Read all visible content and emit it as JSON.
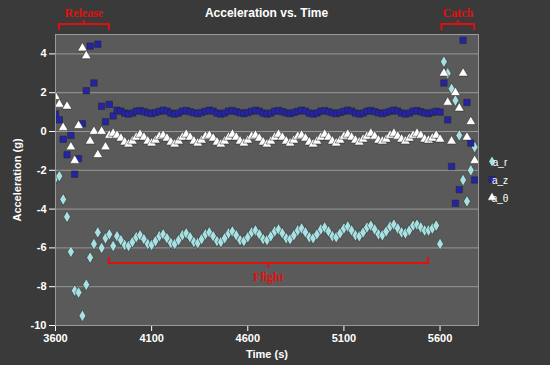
{
  "chart_data": {
    "type": "scatter",
    "title": "Acceleration vs. Time",
    "x_label": "Time (s)",
    "y_label": "Acceleration (g)",
    "xlim": [
      3600,
      5800
    ],
    "xticks": [
      3600,
      4100,
      4600,
      5100,
      5600
    ],
    "ylim": [
      -10,
      5
    ],
    "yticks": [
      -10,
      -8,
      -6,
      -4,
      -2,
      0,
      2,
      4
    ],
    "grid": true,
    "legend": "right",
    "x": [
      3600,
      3620,
      3640,
      3660,
      3680,
      3700,
      3720,
      3740,
      3760,
      3780,
      3800,
      3820,
      3840,
      3860,
      3880,
      3900,
      3920,
      3940,
      3960,
      3980,
      4000,
      4020,
      4040,
      4060,
      4080,
      4100,
      4120,
      4140,
      4160,
      4180,
      4200,
      4220,
      4240,
      4260,
      4280,
      4300,
      4320,
      4340,
      4360,
      4380,
      4400,
      4420,
      4440,
      4460,
      4480,
      4500,
      4520,
      4540,
      4560,
      4580,
      4600,
      4620,
      4640,
      4660,
      4680,
      4700,
      4720,
      4740,
      4760,
      4780,
      4800,
      4820,
      4840,
      4860,
      4880,
      4900,
      4920,
      4940,
      4960,
      4980,
      5000,
      5020,
      5040,
      5060,
      5080,
      5100,
      5120,
      5140,
      5160,
      5180,
      5200,
      5220,
      5240,
      5260,
      5280,
      5300,
      5320,
      5340,
      5360,
      5380,
      5400,
      5420,
      5440,
      5460,
      5480,
      5500,
      5520,
      5540,
      5560,
      5580,
      5600,
      5620,
      5640,
      5660,
      5680,
      5700,
      5720,
      5740,
      5760,
      5780
    ],
    "series": [
      {
        "name": "a_r",
        "color": "#a9e1e3",
        "marker": "diamond",
        "values": [
          -2.4,
          -2.3,
          -3.5,
          -4.4,
          -6.2,
          -8.2,
          -8.3,
          -9.5,
          -7.9,
          -6.5,
          -5.8,
          -5.2,
          -6.0,
          -5.5,
          -5.3,
          -5.9,
          -5.4,
          -5.6,
          -5.85,
          -5.9,
          -5.7,
          -5.45,
          -5.35,
          -5.55,
          -5.8,
          -5.85,
          -5.65,
          -5.4,
          -5.3,
          -5.5,
          -5.75,
          -5.8,
          -5.6,
          -5.35,
          -5.25,
          -5.45,
          -5.7,
          -5.75,
          -5.55,
          -5.3,
          -5.2,
          -5.4,
          -5.65,
          -5.7,
          -5.5,
          -5.25,
          -5.15,
          -5.35,
          -5.6,
          -5.65,
          -5.45,
          -5.2,
          -5.1,
          -5.3,
          -5.55,
          -5.6,
          -5.4,
          -5.15,
          -5.05,
          -5.25,
          -5.5,
          -5.55,
          -5.35,
          -5.1,
          -5.0,
          -5.2,
          -5.45,
          -5.5,
          -5.3,
          -5.05,
          -4.95,
          -5.15,
          -5.4,
          -5.45,
          -5.25,
          -5.0,
          -4.9,
          -5.1,
          -5.35,
          -5.4,
          -5.2,
          -4.95,
          -4.85,
          -5.05,
          -5.3,
          -5.35,
          -5.15,
          -4.9,
          -4.8,
          -5.0,
          -5.2,
          -5.25,
          -5.1,
          -4.85,
          -4.8,
          -4.95,
          -5.1,
          -5.1,
          -5.0,
          -4.85,
          -5.8,
          3.6,
          3.0,
          2.2,
          1.6,
          -0.2,
          -2.5,
          -3.6,
          -2.0,
          -0.8
        ]
      },
      {
        "name": "a_z",
        "color": "#2424a8",
        "marker": "square",
        "values": [
          0.9,
          0.6,
          -0.4,
          -1.2,
          -0.2,
          -2.2,
          -1.4,
          0.4,
          2.1,
          4.4,
          2.5,
          4.5,
          1.3,
          0.5,
          1.4,
          0.8,
          1.1,
          1.05,
          0.95,
          0.9,
          0.95,
          1.05,
          1.08,
          1.02,
          0.96,
          0.92,
          0.98,
          1.04,
          1.1,
          1.05,
          0.95,
          0.9,
          0.95,
          1.05,
          1.08,
          1.02,
          0.96,
          0.92,
          0.98,
          1.04,
          1.1,
          1.05,
          0.95,
          0.9,
          0.95,
          1.05,
          1.08,
          1.02,
          0.96,
          0.92,
          0.98,
          1.04,
          1.1,
          1.05,
          0.95,
          0.9,
          0.95,
          1.05,
          1.08,
          1.02,
          0.96,
          0.92,
          0.98,
          1.04,
          1.1,
          1.05,
          0.95,
          0.9,
          0.95,
          1.05,
          1.08,
          1.02,
          0.96,
          0.92,
          0.98,
          1.04,
          1.1,
          1.05,
          0.95,
          0.9,
          0.95,
          1.05,
          1.08,
          1.02,
          0.96,
          0.92,
          0.98,
          1.04,
          1.1,
          1.05,
          0.95,
          0.9,
          0.95,
          1.05,
          1.08,
          1.02,
          0.96,
          0.92,
          0.98,
          1.04,
          1.0,
          2.5,
          0.6,
          -1.8,
          -3.7,
          -3.0,
          4.7,
          1.5,
          -0.6,
          -2.5
        ]
      },
      {
        "name": "a_θ",
        "color": "#ffffff",
        "marker": "triangle",
        "values": [
          1.8,
          1.4,
          0.2,
          1.3,
          -0.8,
          -1.5,
          0.3,
          4.3,
          3.9,
          -0.5,
          0.0,
          -1.2,
          0.0,
          -0.8,
          -0.2,
          -0.1,
          -0.2,
          -0.35,
          -0.55,
          -0.65,
          -0.5,
          -0.3,
          -0.15,
          -0.3,
          -0.5,
          -0.6,
          -0.45,
          -0.25,
          -0.2,
          -0.35,
          -0.55,
          -0.65,
          -0.5,
          -0.3,
          -0.15,
          -0.3,
          -0.5,
          -0.6,
          -0.45,
          -0.25,
          -0.2,
          -0.35,
          -0.55,
          -0.65,
          -0.5,
          -0.3,
          -0.15,
          -0.3,
          -0.5,
          -0.6,
          -0.45,
          -0.25,
          -0.2,
          -0.35,
          -0.55,
          -0.65,
          -0.5,
          -0.3,
          -0.15,
          -0.3,
          -0.5,
          -0.6,
          -0.45,
          -0.25,
          -0.2,
          -0.35,
          -0.55,
          -0.65,
          -0.5,
          -0.3,
          -0.15,
          -0.3,
          -0.5,
          -0.6,
          -0.45,
          -0.25,
          -0.15,
          -0.3,
          -0.45,
          -0.55,
          -0.4,
          -0.25,
          -0.1,
          -0.25,
          -0.45,
          -0.5,
          -0.4,
          -0.2,
          -0.1,
          -0.25,
          -0.4,
          -0.5,
          -0.35,
          -0.2,
          -0.1,
          -0.2,
          -0.4,
          -0.45,
          -0.35,
          -0.2,
          -0.4,
          3.0,
          1.5,
          -0.5,
          2.0,
          1.2,
          3.0,
          -0.3,
          0.5,
          -1.5
        ]
      }
    ],
    "annotations": [
      {
        "text": "Release",
        "x_range": [
          3620,
          3880
        ]
      },
      {
        "text": "Catch",
        "x_range": [
          5610,
          5780
        ]
      },
      {
        "text": "Flight",
        "x_range": [
          3880,
          5540
        ],
        "y": -6.8
      }
    ]
  }
}
